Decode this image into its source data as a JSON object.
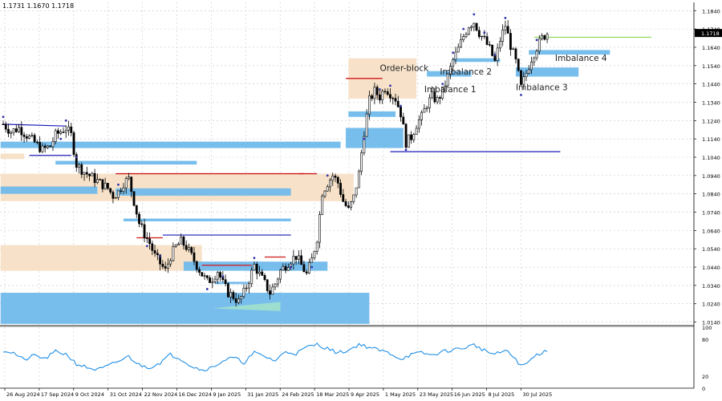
{
  "header": {
    "ohlc_text": "1.1731 1.1670 1.1718"
  },
  "colors": {
    "candle": "#000000",
    "grid": "#c8c8c8",
    "imbalance": "#6cb8ec",
    "orderblock": "#f6dfc3",
    "swing_line": "#1b1bb8",
    "high_line": "#d01818",
    "price_line": "#7bd23a",
    "oscillator": "#1f8fe6",
    "marker": "#3333aa"
  },
  "current_price_label": "1.1718",
  "chart_data": [
    {
      "type": "candlestick",
      "title": "",
      "y_ticks": [
        "1.1840",
        "1.1740",
        "1.1640",
        "1.1540",
        "1.1440",
        "1.1340",
        "1.1240",
        "1.1140",
        "1.1040",
        "1.0940",
        "1.0840",
        "1.0740",
        "1.0640",
        "1.0540",
        "1.0440",
        "1.0340",
        "1.0240",
        "1.0140"
      ],
      "ylim": [
        1.0125,
        1.1885
      ],
      "x_ticks": [
        "26 Aug 2024",
        "17 Sep 2024",
        "9 Oct 2024",
        "31 Oct 2024",
        "22 Nov 2024",
        "16 Dec 2024",
        "9 Jan 2025",
        "31 Jan 2025",
        "24 Feb 2025",
        "18 Mar 2025",
        "9 Apr 2025",
        "1 May 2025",
        "23 May 2025",
        "16 Jun 2025",
        "8 Jul 2025",
        "30 Jul 2025"
      ],
      "price_anchors": [
        [
          0,
          1.122
        ],
        [
          3,
          1.118
        ],
        [
          6,
          1.12
        ],
        [
          9,
          1.116
        ],
        [
          12,
          1.112
        ],
        [
          15,
          1.108
        ],
        [
          18,
          1.11
        ],
        [
          20,
          1.116
        ],
        [
          22,
          1.118
        ],
        [
          24,
          1.12
        ],
        [
          26,
          1.116
        ],
        [
          28,
          1.1
        ],
        [
          31,
          1.096
        ],
        [
          34,
          1.093
        ],
        [
          37,
          1.09
        ],
        [
          40,
          1.087
        ],
        [
          42,
          1.083
        ],
        [
          44,
          1.085
        ],
        [
          46,
          1.09
        ],
        [
          48,
          1.092
        ],
        [
          50,
          1.08
        ],
        [
          52,
          1.068
        ],
        [
          54,
          1.062
        ],
        [
          56,
          1.057
        ],
        [
          58,
          1.05
        ],
        [
          60,
          1.046
        ],
        [
          62,
          1.042
        ],
        [
          64,
          1.05
        ],
        [
          66,
          1.055
        ],
        [
          68,
          1.058
        ],
        [
          70,
          1.055
        ],
        [
          72,
          1.05
        ],
        [
          74,
          1.045
        ],
        [
          76,
          1.04
        ],
        [
          78,
          1.036
        ],
        [
          80,
          1.038
        ],
        [
          82,
          1.042
        ],
        [
          84,
          1.035
        ],
        [
          86,
          1.03
        ],
        [
          88,
          1.028
        ],
        [
          90,
          1.025
        ],
        [
          92,
          1.03
        ],
        [
          94,
          1.037
        ],
        [
          96,
          1.045
        ],
        [
          98,
          1.04
        ],
        [
          100,
          1.035
        ],
        [
          102,
          1.03
        ],
        [
          104,
          1.035
        ],
        [
          106,
          1.042
        ],
        [
          108,
          1.045
        ],
        [
          110,
          1.048
        ],
        [
          112,
          1.05
        ],
        [
          114,
          1.045
        ],
        [
          116,
          1.04
        ],
        [
          118,
          1.048
        ],
        [
          120,
          1.06
        ],
        [
          122,
          1.085
        ],
        [
          124,
          1.09
        ],
        [
          126,
          1.094
        ],
        [
          128,
          1.09
        ],
        [
          130,
          1.08
        ],
        [
          132,
          1.075
        ],
        [
          134,
          1.082
        ],
        [
          136,
          1.095
        ],
        [
          138,
          1.118
        ],
        [
          140,
          1.135
        ],
        [
          142,
          1.14
        ],
        [
          144,
          1.137
        ],
        [
          146,
          1.142
        ],
        [
          148,
          1.139
        ],
        [
          150,
          1.136
        ],
        [
          152,
          1.128
        ],
        [
          154,
          1.112
        ],
        [
          156,
          1.115
        ],
        [
          158,
          1.122
        ],
        [
          160,
          1.126
        ],
        [
          162,
          1.133
        ],
        [
          164,
          1.137
        ],
        [
          166,
          1.135
        ],
        [
          168,
          1.14
        ],
        [
          170,
          1.148
        ],
        [
          172,
          1.157
        ],
        [
          174,
          1.163
        ],
        [
          176,
          1.17
        ],
        [
          178,
          1.176
        ],
        [
          180,
          1.178
        ],
        [
          182,
          1.172
        ],
        [
          184,
          1.168
        ],
        [
          186,
          1.163
        ],
        [
          188,
          1.156
        ],
        [
          190,
          1.168
        ],
        [
          192,
          1.176
        ],
        [
          194,
          1.165
        ],
        [
          196,
          1.156
        ],
        [
          198,
          1.142
        ],
        [
          200,
          1.15
        ],
        [
          202,
          1.158
        ],
        [
          204,
          1.164
        ],
        [
          206,
          1.169
        ],
        [
          208,
          1.1718
        ]
      ],
      "oscillator": {
        "ticks": [
          "100",
          "80",
          "20",
          "0"
        ],
        "anchors": [
          [
            0,
            62
          ],
          [
            4,
            58
          ],
          [
            8,
            46
          ],
          [
            12,
            54
          ],
          [
            16,
            48
          ],
          [
            20,
            60
          ],
          [
            24,
            56
          ],
          [
            28,
            40
          ],
          [
            32,
            34
          ],
          [
            36,
            30
          ],
          [
            40,
            36
          ],
          [
            44,
            44
          ],
          [
            48,
            52
          ],
          [
            52,
            38
          ],
          [
            56,
            34
          ],
          [
            60,
            42
          ],
          [
            64,
            55
          ],
          [
            68,
            48
          ],
          [
            72,
            36
          ],
          [
            76,
            30
          ],
          [
            80,
            34
          ],
          [
            84,
            45
          ],
          [
            88,
            50
          ],
          [
            92,
            42
          ],
          [
            96,
            58
          ],
          [
            100,
            52
          ],
          [
            104,
            45
          ],
          [
            108,
            60
          ],
          [
            112,
            57
          ],
          [
            116,
            67
          ],
          [
            120,
            72
          ],
          [
            124,
            65
          ],
          [
            128,
            58
          ],
          [
            132,
            62
          ],
          [
            136,
            72
          ],
          [
            140,
            67
          ],
          [
            144,
            62
          ],
          [
            148,
            57
          ],
          [
            152,
            48
          ],
          [
            156,
            55
          ],
          [
            160,
            58
          ],
          [
            164,
            54
          ],
          [
            168,
            60
          ],
          [
            172,
            63
          ],
          [
            176,
            66
          ],
          [
            180,
            71
          ],
          [
            184,
            62
          ],
          [
            188,
            55
          ],
          [
            192,
            62
          ],
          [
            196,
            48
          ],
          [
            198,
            36
          ],
          [
            200,
            40
          ],
          [
            204,
            55
          ],
          [
            208,
            62
          ]
        ]
      }
    }
  ],
  "annotations": [
    {
      "text": "Order-block",
      "price": 1.151,
      "bar": 144
    },
    {
      "text": "Imbalance 2",
      "price": 1.149,
      "bar": 167
    },
    {
      "text": "Imbalance 1",
      "price": 1.1395,
      "bar": 161
    },
    {
      "text": "Imbalance 4",
      "price": 1.1565,
      "bar": 211
    },
    {
      "text": "Imbalance 3",
      "price": 1.1405,
      "bar": 196
    }
  ],
  "zones": {
    "imbalance": [
      {
        "b0": -1,
        "b1": 129,
        "p0": 1.109,
        "p1": 1.1125
      },
      {
        "b0": 20,
        "b1": 74,
        "p0": 1.1,
        "p1": 1.102
      },
      {
        "b0": -1,
        "b1": 36,
        "p0": 1.084,
        "p1": 1.088
      },
      {
        "b0": 43,
        "b1": 110,
        "p0": 1.083,
        "p1": 1.087
      },
      {
        "b0": 46,
        "b1": 110,
        "p0": 1.069,
        "p1": 1.0705
      },
      {
        "b0": 69,
        "b1": 124,
        "p0": 1.042,
        "p1": 1.047
      },
      {
        "b0": -1,
        "b1": 140,
        "p0": 1.013,
        "p1": 1.03
      },
      {
        "b0": 81,
        "b1": 94,
        "p0": 1.035,
        "p1": 1.036
      },
      {
        "b0": 131,
        "b1": 153,
        "p0": 1.109,
        "p1": 1.12
      },
      {
        "b0": 132,
        "b1": 150,
        "p0": 1.126,
        "p1": 1.129
      },
      {
        "b0": 162,
        "b1": 179,
        "p0": 1.148,
        "p1": 1.151
      },
      {
        "b0": 172,
        "b1": 190,
        "p0": 1.156,
        "p1": 1.158
      },
      {
        "b0": 196,
        "b1": 220,
        "p0": 1.148,
        "p1": 1.153
      },
      {
        "b0": 201,
        "b1": 232,
        "p0": 1.16,
        "p1": 1.1625
      }
    ],
    "orderblock": [
      {
        "b0": -1,
        "b1": 8,
        "p0": 1.103,
        "p1": 1.106
      },
      {
        "b0": -1,
        "b1": 134,
        "p0": 1.08,
        "p1": 1.095
      },
      {
        "b0": -1,
        "b1": 76,
        "p0": 1.042,
        "p1": 1.056
      },
      {
        "b0": 132,
        "b1": 158,
        "p0": 1.136,
        "p1": 1.158
      }
    ]
  },
  "lines": {
    "swing": [
      {
        "b0": 0,
        "b1": 24,
        "p0": 1.122,
        "p1": 1.121
      },
      {
        "b0": 10,
        "b1": 26,
        "p0": 1.105,
        "p1": 1.105
      },
      {
        "b0": 61,
        "b1": 110,
        "p0": 1.0615,
        "p1": 1.0615
      },
      {
        "b0": 148,
        "b1": 213,
        "p0": 1.107,
        "p1": 1.107
      }
    ],
    "high": [
      {
        "b0": 43,
        "b1": 115,
        "p0": 1.095,
        "p1": 1.095
      },
      {
        "b0": 51,
        "b1": 61,
        "p0": 1.06,
        "p1": 1.06
      },
      {
        "b0": 76,
        "b1": 95,
        "p0": 1.045,
        "p1": 1.045
      },
      {
        "b0": 100,
        "b1": 108,
        "p0": 1.0495,
        "p1": 1.0495
      },
      {
        "b0": 113,
        "b1": 120,
        "p0": 1.095,
        "p1": 1.095
      },
      {
        "b0": 131,
        "b1": 145,
        "p0": 1.147,
        "p1": 1.147
      }
    ]
  }
}
